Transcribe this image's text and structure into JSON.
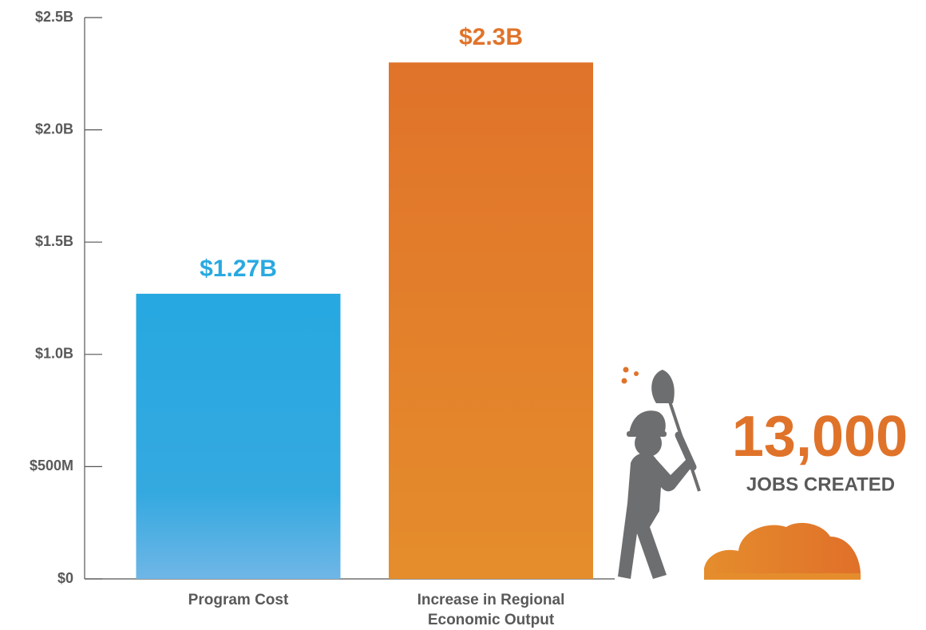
{
  "chart_data": {
    "type": "bar",
    "categories": [
      "Program Cost",
      "Increase in Regional Economic Output"
    ],
    "values": [
      1270000000,
      2300000000
    ],
    "value_labels": [
      "$1.27B",
      "$2.3B"
    ],
    "colors": [
      "#29a9e1",
      "#e0732a"
    ],
    "ylim": [
      0,
      2500000000
    ],
    "yticks": [
      {
        "value": 0,
        "label": "$0"
      },
      {
        "value": 500000000,
        "label": "$500M"
      },
      {
        "value": 1000000000,
        "label": "$1.0B"
      },
      {
        "value": 1500000000,
        "label": "$1.5B"
      },
      {
        "value": 2000000000,
        "label": "$2.0B"
      },
      {
        "value": 2500000000,
        "label": "$2.5B"
      }
    ],
    "grid": false,
    "annotations": [
      "13,000",
      "JOBS CREATED"
    ]
  }
}
